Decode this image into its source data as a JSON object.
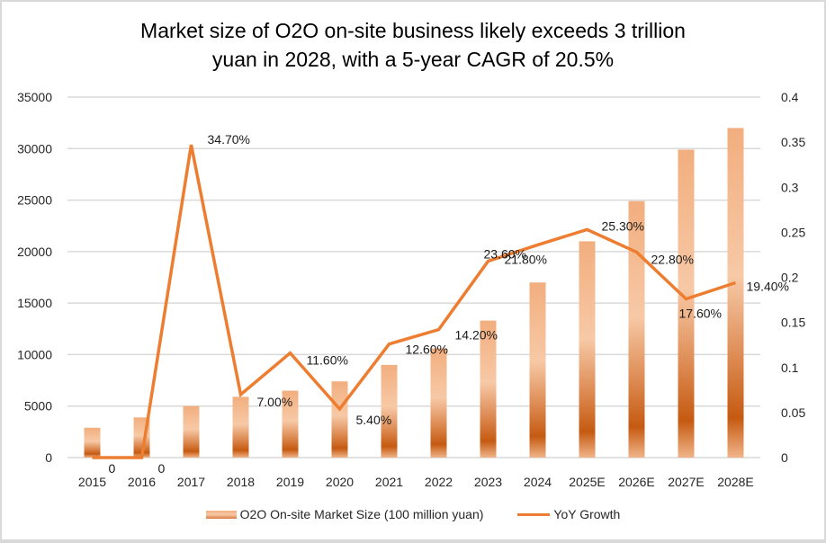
{
  "chart_data": {
    "type": "bar+line",
    "title": "Market size of O2O on-site business likely exceeds 3 trillion yuan in 2028, with a 5-year CAGR of 20.5%",
    "title_lines": [
      "Market size of O2O on-site business likely exceeds 3 trillion",
      "yuan in 2028, with a 5-year CAGR of 20.5%"
    ],
    "categories": [
      "2015",
      "2016",
      "2017",
      "2018",
      "2019",
      "2020",
      "2021",
      "2022",
      "2023",
      "2024",
      "2025E",
      "2026E",
      "2027E",
      "2028E"
    ],
    "series": [
      {
        "name": "O2O On-site Market Size (100 million yuan)",
        "type": "bar",
        "axis": "left",
        "values": [
          2900,
          3900,
          5000,
          5900,
          6500,
          7400,
          9000,
          10600,
          13300,
          17000,
          21000,
          24900,
          29900,
          32000
        ]
      },
      {
        "name": "YoY Growth",
        "type": "line",
        "axis": "right",
        "values": [
          0,
          0,
          0.347,
          0.07,
          0.116,
          0.054,
          0.126,
          0.142,
          0.218,
          0.236,
          0.253,
          0.228,
          0.176,
          0.194
        ],
        "data_labels": [
          "0",
          "0",
          "34.70%",
          "7.00%",
          "11.60%",
          "5.40%",
          "12.60%",
          "14.20%",
          "21.80%",
          "23.60%",
          "25.30%",
          "22.80%",
          "17.60%",
          "19.40%"
        ]
      }
    ],
    "left_axis": {
      "min": 0,
      "max": 35000,
      "step": 5000,
      "ticks": [
        "0",
        "5000",
        "10000",
        "15000",
        "20000",
        "25000",
        "30000",
        "35000"
      ]
    },
    "right_axis": {
      "min": 0,
      "max": 0.4,
      "step": 0.05,
      "ticks": [
        "0",
        "0.05",
        "0.1",
        "0.15",
        "0.2",
        "0.25",
        "0.3",
        "0.35",
        "0.4"
      ]
    },
    "grid": true,
    "legend_position": "bottom",
    "colors": {
      "bar_top": "#f3b184",
      "bar_mid": "#f7caa9",
      "bar_dark": "#c55a11",
      "line": "#ed7d31",
      "grid": "#d9d9d9"
    }
  }
}
